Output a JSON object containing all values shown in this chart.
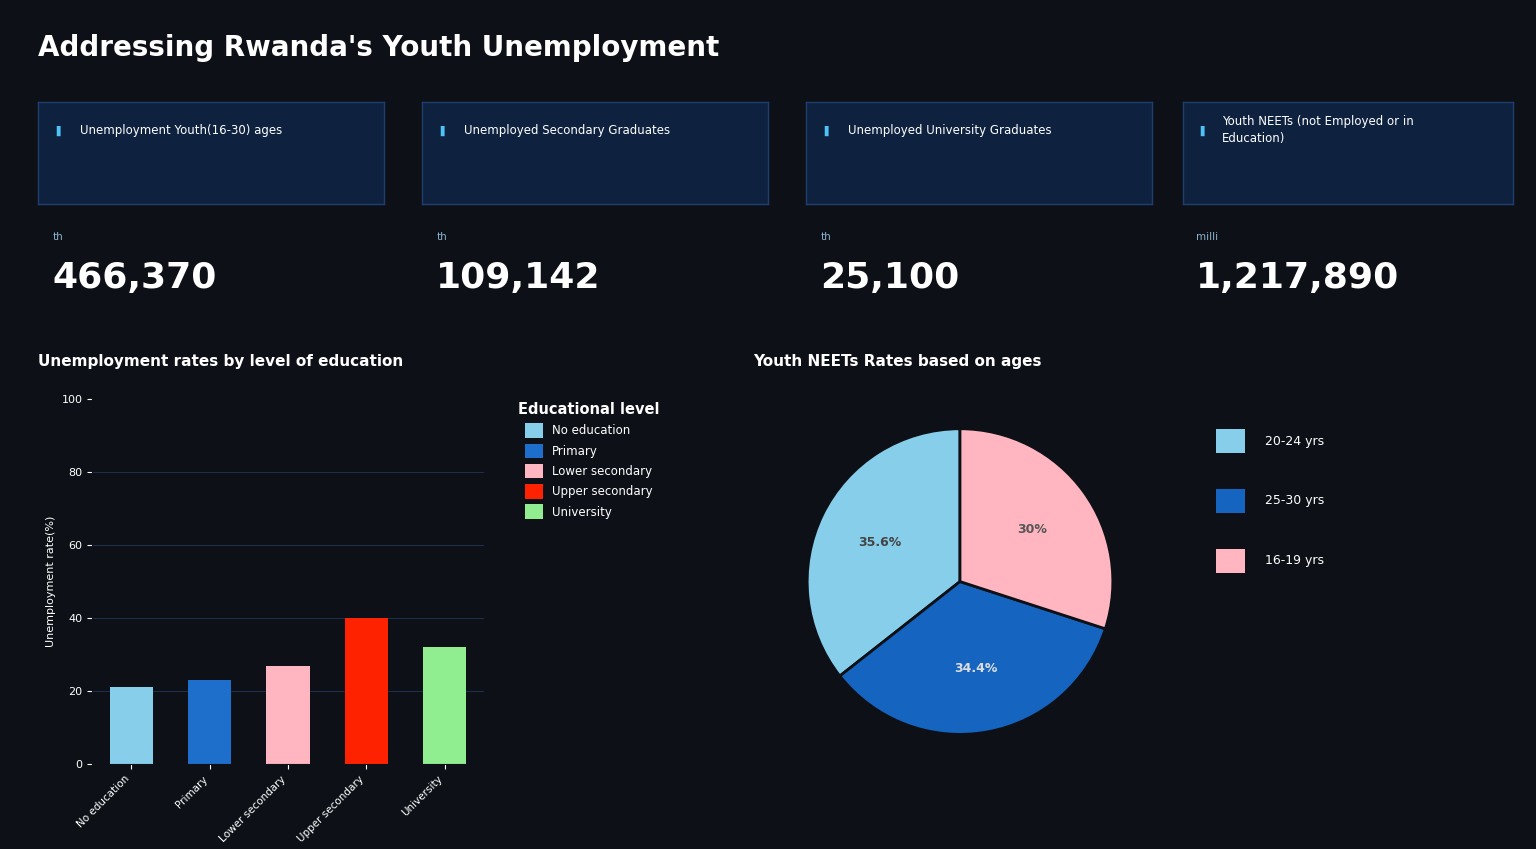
{
  "title": "Addressing Rwanda's Youth Unemployment",
  "bg_color": "#0d1117",
  "card_bg_color": "#0e2240",
  "card_border_color": "#1e3f6e",
  "text_color": "#ffffff",
  "subtext_color": "#8ab0cc",
  "icon_color": "#4fc3f7",
  "kpi_cards": [
    {
      "label": "Unemployment Youth(16-30) ages",
      "value": "466,370",
      "unit": "th",
      "label_lines": 1
    },
    {
      "label": "Unemployed Secondary Graduates",
      "value": "109,142",
      "unit": "th",
      "label_lines": 1
    },
    {
      "label": "Unemployed University Graduates",
      "value": "25,100",
      "unit": "th",
      "label_lines": 1
    },
    {
      "label": "Youth NEETs (not Employed or in\nEducation)",
      "value": "1,217,890",
      "unit": "milli",
      "label_lines": 2
    }
  ],
  "bar_chart": {
    "title": "Unemployment rates by level of education",
    "xlabel": "Educational level",
    "ylabel": "Unemployment rate(%)",
    "categories": [
      "No education",
      "Primary",
      "Lower secondary",
      "Upper secondary",
      "University"
    ],
    "values": [
      21,
      23,
      27,
      40,
      32
    ],
    "colors": [
      "#87ceeb",
      "#1e6fcc",
      "#ffb6c1",
      "#ff2200",
      "#90ee90"
    ],
    "legend_title": "Educational level",
    "ylim": [
      0,
      100
    ],
    "yticks": [
      0,
      20,
      40,
      60,
      80,
      100
    ]
  },
  "pie_chart": {
    "title": "Youth NEETs Rates based on ages",
    "labels": [
      "20-24 yrs",
      "25-30 yrs",
      "16-19 yrs"
    ],
    "values": [
      35.6,
      34.4,
      30.0
    ],
    "colors": [
      "#87ceeb",
      "#1565c0",
      "#ffb6c1"
    ],
    "text_labels": [
      "35.6%",
      "34.4%",
      "30%"
    ],
    "text_colors": [
      "#444444",
      "#dddddd",
      "#555555"
    ]
  },
  "separator_color": "#2a4060",
  "grid_color": "#1e3050"
}
